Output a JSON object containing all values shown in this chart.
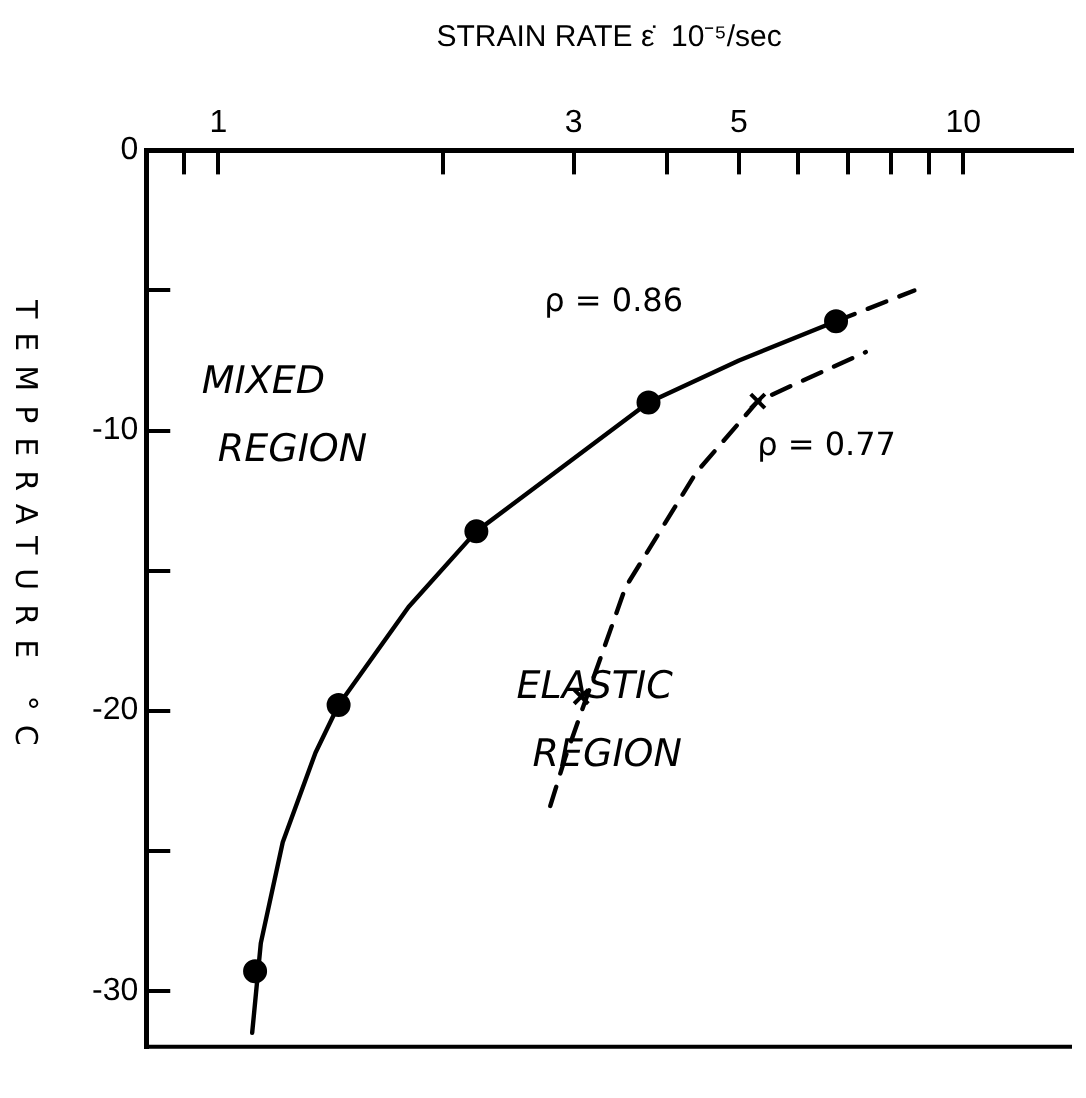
{
  "chart_data": {
    "type": "scatter",
    "xlabel": "STRAIN RATE ε̇  10⁻⁵/sec",
    "ylabel": "TEMPERATURE °C",
    "log": "x",
    "xlim": [
      0.8,
      14
    ],
    "xticks": [
      {
        "value": 0.9,
        "label": null
      },
      1,
      {
        "value": 2,
        "label": null
      },
      3,
      {
        "value": 4,
        "label": null
      },
      5,
      {
        "value": 6,
        "label": null
      },
      {
        "value": 7,
        "label": null
      },
      {
        "value": 8,
        "label": null
      },
      {
        "value": 9,
        "label": null
      },
      10
    ],
    "ylim": [
      -32,
      0
    ],
    "yticks": [
      0,
      {
        "value": -5,
        "label": null
      },
      -10,
      {
        "value": -15,
        "label": null
      },
      -20,
      {
        "value": -25,
        "label": null
      },
      -30
    ],
    "series": [
      {
        "type": "line",
        "line_style": "solid",
        "marker": "none",
        "color": "#000000",
        "x": [
          1.11,
          1.14,
          1.22,
          1.35,
          1.45,
          1.8,
          2.22,
          3.0,
          3.78,
          5.0,
          6.75
        ],
        "values": [
          -31.5,
          -28.3,
          -24.7,
          -21.5,
          -19.8,
          -16.3,
          -13.6,
          -11.0,
          -9.0,
          -7.5,
          -6.1
        ]
      },
      {
        "type": "line",
        "line_style": "dashed",
        "marker": "none",
        "color": "#000000",
        "x": [
          6.75,
          8.6
        ],
        "values": [
          -6.1,
          -5.0
        ]
      },
      {
        "type": "line",
        "line_style": "dashed",
        "marker": "none",
        "color": "#000000",
        "x": [
          2.79,
          2.92,
          3.52,
          4.38,
          5.3,
          7.4
        ],
        "values": [
          -23.4,
          -21.7,
          -15.6,
          -11.5,
          -8.95,
          -7.2
        ]
      },
      {
        "marker": "circle",
        "color": "#000000",
        "x": [
          1.12,
          1.45,
          2.22,
          3.78,
          6.75
        ],
        "values": [
          -29.3,
          -19.8,
          -13.6,
          -9.0,
          -6.1
        ]
      },
      {
        "marker": "cross",
        "color": "#000000",
        "x": [
          3.07,
          5.3
        ],
        "values": [
          -19.5,
          -8.95
        ]
      }
    ],
    "annotations": [
      "MIXED REGION",
      "ELASTIC REGION",
      "ρ = 0.86",
      "ρ = 0.77"
    ]
  }
}
